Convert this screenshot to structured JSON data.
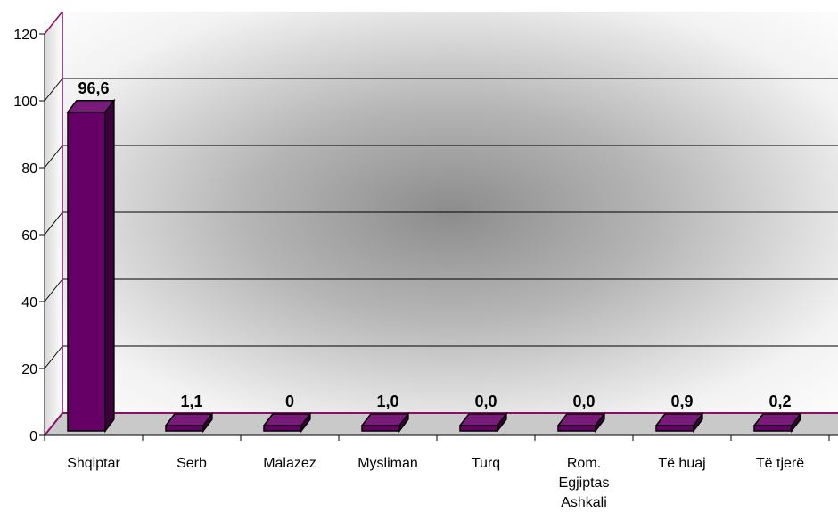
{
  "chart_data": {
    "type": "bar",
    "title": "",
    "xlabel": "",
    "ylabel": "",
    "ylim": [
      0,
      120
    ],
    "yticks": [
      "0",
      "20",
      "40",
      "60",
      "80",
      "100",
      "120"
    ],
    "categories": [
      [
        "Shqiptar"
      ],
      [
        "Serb"
      ],
      [
        "Malazez"
      ],
      [
        "Mysliman"
      ],
      [
        "Turq"
      ],
      [
        "Rom.",
        "Egjiptas",
        "Ashkali"
      ],
      [
        "Të huaj"
      ],
      [
        "Të tjerë"
      ]
    ],
    "values": [
      96.6,
      1.1,
      0,
      1.0,
      0.0,
      0.0,
      0.9,
      0.2
    ],
    "value_labels": [
      "96,6",
      "1,1",
      "0",
      "1,0",
      "0,0",
      "0,0",
      "0,9",
      "0,2"
    ],
    "grid": true,
    "legend": "none",
    "colors": {
      "bar_front": "#660066",
      "bar_top": "#7a1a7a",
      "bar_side": "#3d003d",
      "bar_outline": "#000000",
      "floor": "#8a0f6a",
      "gridline": "#000000"
    }
  }
}
